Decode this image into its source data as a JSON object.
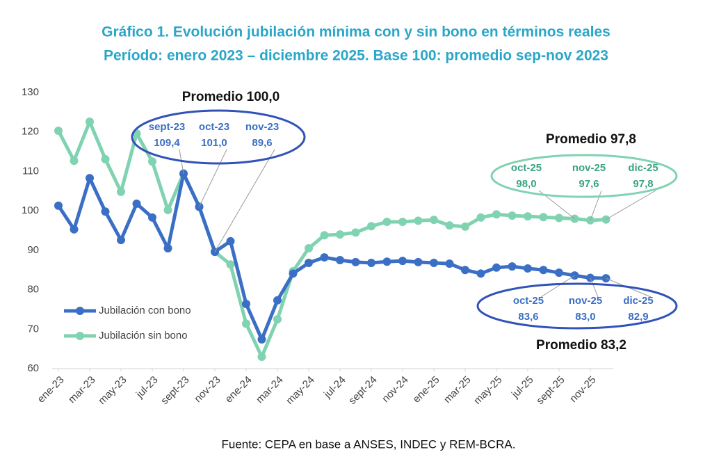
{
  "chart_data": {
    "type": "line",
    "title": "Gráfico 1. Evolución jubilación mínima con y sin bono en términos reales",
    "subtitle": "Período: enero 2023 – diciembre 2025. Base 100: promedio sep-nov 2023",
    "categories": [
      "ene-23",
      null,
      "mar-23",
      null,
      "may-23",
      null,
      "jul-23",
      null,
      "sept-23",
      null,
      "nov-23",
      null,
      "ene-24",
      null,
      "mar-24",
      null,
      "may-24",
      null,
      "jul-24",
      null,
      "sept-24",
      null,
      "nov-24",
      null,
      "ene-25",
      null,
      "mar-25",
      null,
      "may-25",
      null,
      "jul-25",
      null,
      "sept-25",
      null,
      "nov-25",
      null
    ],
    "series": [
      {
        "name": "Jubilación con bono",
        "color": "#3b6fc5",
        "values": [
          101.3,
          95.3,
          108.3,
          99.8,
          92.6,
          101.8,
          98.3,
          90.5,
          109.4,
          101.0,
          89.6,
          92.3,
          76.4,
          67.4,
          77.3,
          84.1,
          86.8,
          88.2,
          87.5,
          87.0,
          86.8,
          87.1,
          87.3,
          87.0,
          86.8,
          86.6,
          85.0,
          84.1,
          85.6,
          85.9,
          85.4,
          85.0,
          84.3,
          83.6,
          83.0,
          82.9
        ],
        "value_labels": [
          null,
          null,
          null,
          null,
          null,
          null,
          null,
          null,
          "109,4",
          "101,0",
          "89,6",
          null,
          null,
          null,
          null,
          null,
          null,
          null,
          null,
          null,
          null,
          null,
          null,
          null,
          null,
          null,
          null,
          null,
          null,
          null,
          null,
          null,
          null,
          "83,6",
          "83,0",
          "82,9"
        ],
        "callout_dates": [
          "sept-23",
          "oct-23",
          "nov-23",
          "oct-25",
          "nov-25",
          "dic-25"
        ]
      },
      {
        "name": "Jubilación sin bono",
        "color": "#80d3b1",
        "values": [
          120.3,
          112.7,
          122.6,
          113.1,
          104.8,
          119.6,
          112.5,
          100.2,
          109.5,
          101.1,
          89.6,
          86.4,
          71.4,
          63.0,
          72.5,
          84.7,
          90.5,
          93.8,
          94.0,
          94.5,
          96.1,
          97.2,
          97.2,
          97.5,
          97.7,
          96.3,
          96.0,
          98.3,
          99.1,
          98.8,
          98.6,
          98.4,
          98.2,
          98.0,
          97.6,
          97.8
        ],
        "value_labels": [
          null,
          null,
          null,
          null,
          null,
          null,
          null,
          null,
          null,
          null,
          null,
          null,
          null,
          null,
          null,
          null,
          null,
          null,
          null,
          null,
          null,
          null,
          null,
          null,
          null,
          null,
          null,
          null,
          null,
          null,
          null,
          null,
          null,
          "98,0",
          "97,6",
          "97,8"
        ],
        "callout_dates": [
          "oct-25",
          "nov-25",
          "dic-25"
        ]
      }
    ],
    "annotations": [
      "Promedio 100,0",
      "Promedio 97,8",
      "Promedio 83,2"
    ],
    "ylim": [
      60,
      130
    ],
    "yticks": [
      60,
      70,
      80,
      90,
      100,
      110,
      120,
      130
    ],
    "grid": false,
    "legend": "lower left",
    "source": "Fuente: CEPA en base a ANSES, INDEC y REM-BCRA."
  }
}
